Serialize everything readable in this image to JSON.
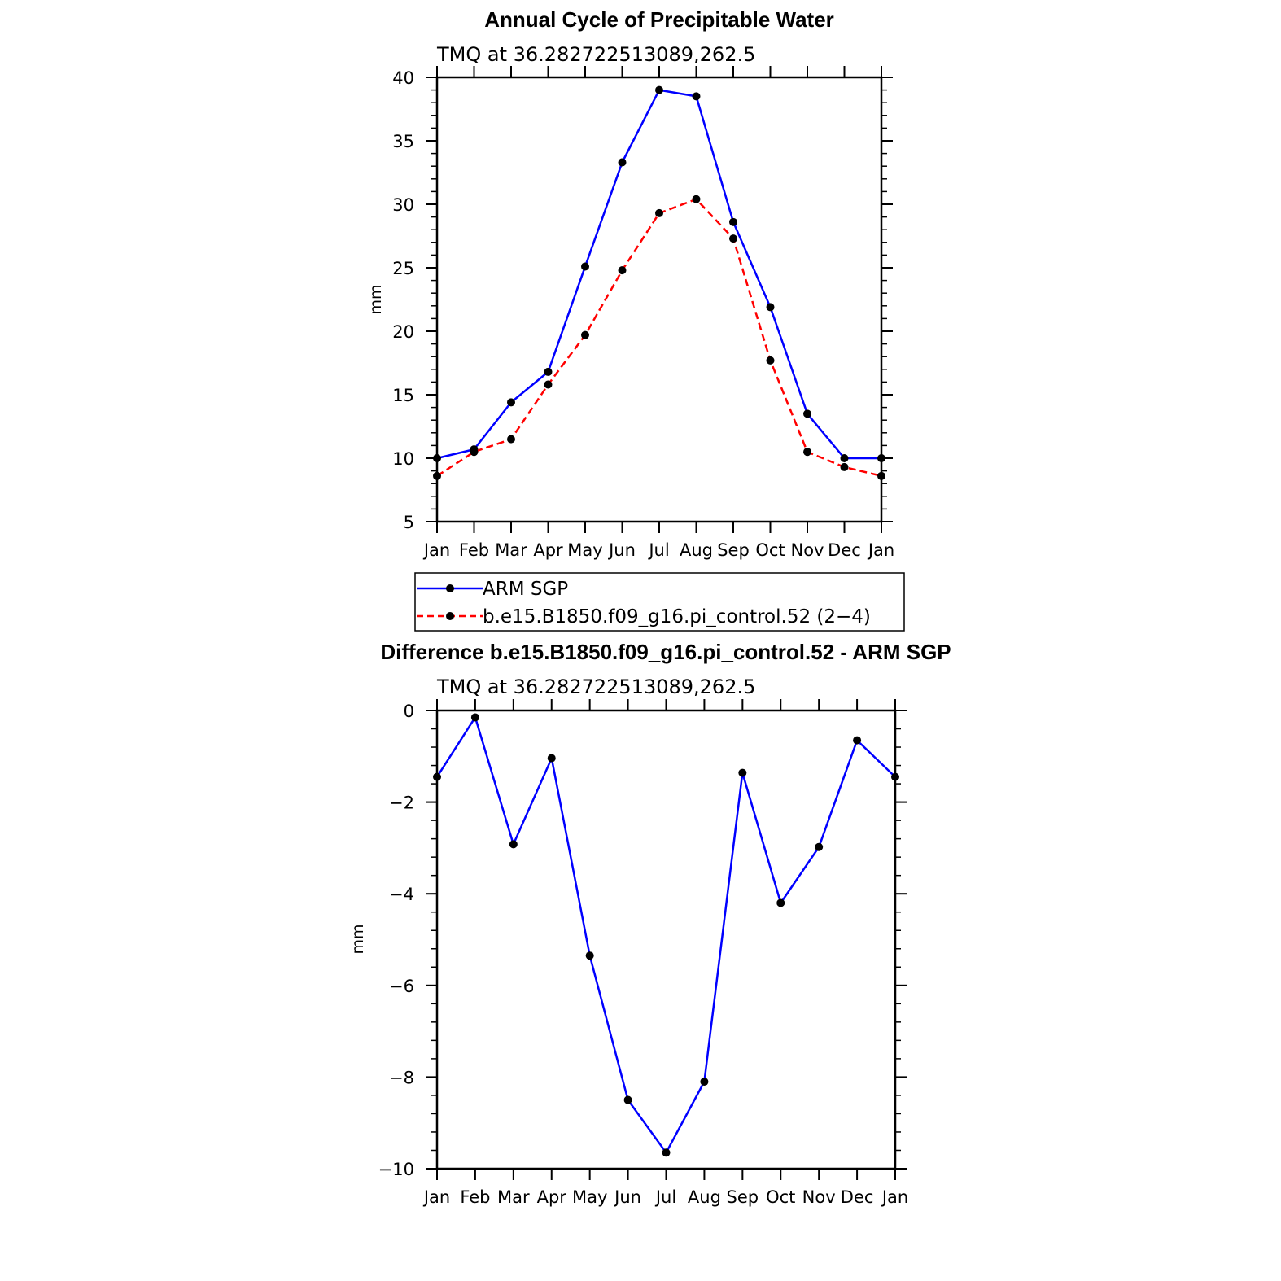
{
  "chart_data": [
    {
      "type": "line",
      "title": "Annual Cycle of Precipitable Water",
      "subtitle": "TMQ at 36.282722513089,262.5",
      "ylabel": "mm",
      "xlabel": "",
      "ylim": [
        5,
        40
      ],
      "yticks": [
        5,
        10,
        15,
        20,
        25,
        30,
        35,
        40
      ],
      "categories": [
        "Jan",
        "Feb",
        "Mar",
        "Apr",
        "May",
        "Jun",
        "Jul",
        "Aug",
        "Sep",
        "Oct",
        "Nov",
        "Dec",
        "Jan"
      ],
      "series": [
        {
          "name": "ARM SGP",
          "color": "#0000ff",
          "dash": false,
          "values": [
            10.0,
            10.7,
            14.4,
            16.8,
            25.1,
            33.3,
            39.0,
            38.5,
            28.6,
            21.9,
            13.5,
            10.0,
            10.0
          ]
        },
        {
          "name": "b.e15.B1850.f09_g16.pi_control.52 (2−4)",
          "color": "#ff0000",
          "dash": true,
          "values": [
            8.6,
            10.5,
            11.5,
            15.8,
            19.7,
            24.8,
            29.3,
            30.4,
            27.3,
            17.7,
            10.5,
            9.3,
            8.6
          ]
        }
      ],
      "legend": "below-plot"
    },
    {
      "type": "line",
      "title": "Difference b.e15.B1850.f09_g16.pi_control.52 - ARM SGP",
      "subtitle": "TMQ at 36.282722513089,262.5",
      "ylabel": "mm",
      "xlabel": "",
      "ylim": [
        -10,
        0
      ],
      "yticks": [
        0,
        -2,
        -4,
        -6,
        -8,
        -10
      ],
      "ytick_labels": [
        "0",
        "−2",
        "−4",
        "−6",
        "−8",
        "−10"
      ],
      "categories": [
        "Jan",
        "Feb",
        "Mar",
        "Apr",
        "May",
        "Jun",
        "Jul",
        "Aug",
        "Sep",
        "Oct",
        "Nov",
        "Dec",
        "Jan"
      ],
      "series": [
        {
          "color": "#0000ff",
          "dash": false,
          "values": [
            -1.45,
            -0.15,
            -2.92,
            -1.04,
            -5.35,
            -8.5,
            -9.65,
            -8.1,
            -1.36,
            -4.2,
            -2.98,
            -0.65,
            -1.45
          ]
        }
      ]
    }
  ]
}
